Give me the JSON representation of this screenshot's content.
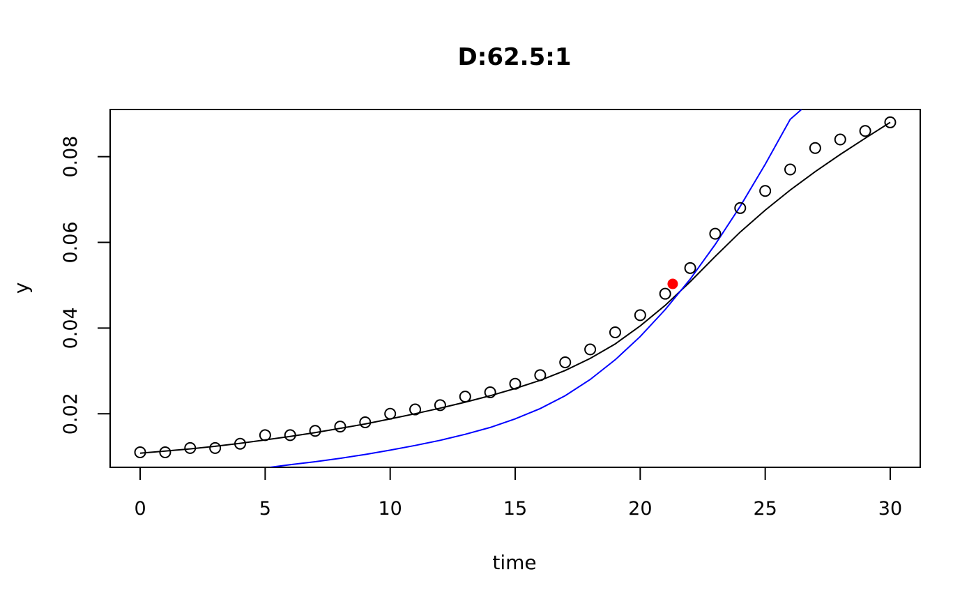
{
  "chart_data": {
    "type": "scatter",
    "title": "D:62.5:1",
    "xlabel": "time",
    "ylabel": "y",
    "xlim": [
      -1.2,
      31.2
    ],
    "ylim": [
      0.0075,
      0.091
    ],
    "x_ticks": [
      0,
      5,
      10,
      15,
      20,
      25,
      30
    ],
    "x_tick_labels": [
      "0",
      "5",
      "10",
      "15",
      "20",
      "25",
      "30"
    ],
    "y_ticks": [
      0.02,
      0.04,
      0.06,
      0.08
    ],
    "y_tick_labels": [
      "0.02",
      "0.04",
      "0.06",
      "0.08"
    ],
    "grid": false,
    "series": [
      {
        "kind": "points",
        "marker": "open-circle",
        "color": "#000000",
        "x": [
          0,
          1,
          2,
          3,
          4,
          5,
          6,
          7,
          8,
          9,
          10,
          11,
          12,
          13,
          14,
          15,
          16,
          17,
          18,
          19,
          20,
          21,
          22,
          23,
          24,
          25,
          26,
          27,
          28,
          29,
          30
        ],
        "y": [
          0.011,
          0.011,
          0.012,
          0.012,
          0.013,
          0.015,
          0.015,
          0.016,
          0.017,
          0.018,
          0.02,
          0.021,
          0.022,
          0.024,
          0.025,
          0.027,
          0.029,
          0.032,
          0.035,
          0.039,
          0.043,
          0.048,
          0.054,
          0.062,
          0.068,
          0.072,
          0.077,
          0.082,
          0.084,
          0.086,
          0.088
        ]
      },
      {
        "kind": "smooth-line",
        "color": "#000000",
        "x": [
          0,
          1,
          2,
          3,
          4,
          5,
          6,
          7,
          8,
          9,
          10,
          11,
          12,
          13,
          14,
          15,
          16,
          17,
          18,
          19,
          20,
          21,
          22,
          23,
          24,
          25,
          26,
          27,
          28,
          29,
          30
        ],
        "y": [
          0.0108,
          0.0113,
          0.0118,
          0.0124,
          0.0131,
          0.0139,
          0.0147,
          0.0156,
          0.0166,
          0.0176,
          0.0188,
          0.02,
          0.0213,
          0.0227,
          0.0242,
          0.0259,
          0.0278,
          0.0301,
          0.0329,
          0.0363,
          0.0405,
          0.0453,
          0.0508,
          0.0567,
          0.0624,
          0.0675,
          0.0722,
          0.0765,
          0.0805,
          0.0843,
          0.088
        ]
      },
      {
        "kind": "exponential-fit",
        "color": "#0000ff",
        "x": [
          5.2,
          6,
          7,
          8,
          9,
          10,
          11,
          12,
          13,
          14,
          15,
          16,
          17,
          18,
          19,
          20,
          21,
          22,
          23,
          24,
          25,
          26,
          26.45
        ],
        "y": [
          0.0075,
          0.0081,
          0.0088,
          0.0096,
          0.0105,
          0.0115,
          0.0126,
          0.0138,
          0.0152,
          0.0168,
          0.0188,
          0.0212,
          0.0242,
          0.028,
          0.0326,
          0.038,
          0.0443,
          0.0514,
          0.0595,
          0.0684,
          0.0782,
          0.0887,
          0.091
        ]
      },
      {
        "kind": "highlight-point",
        "marker": "filled-circle",
        "color": "#ff0000",
        "x": [
          21.3
        ],
        "y": [
          0.0503
        ]
      }
    ]
  }
}
